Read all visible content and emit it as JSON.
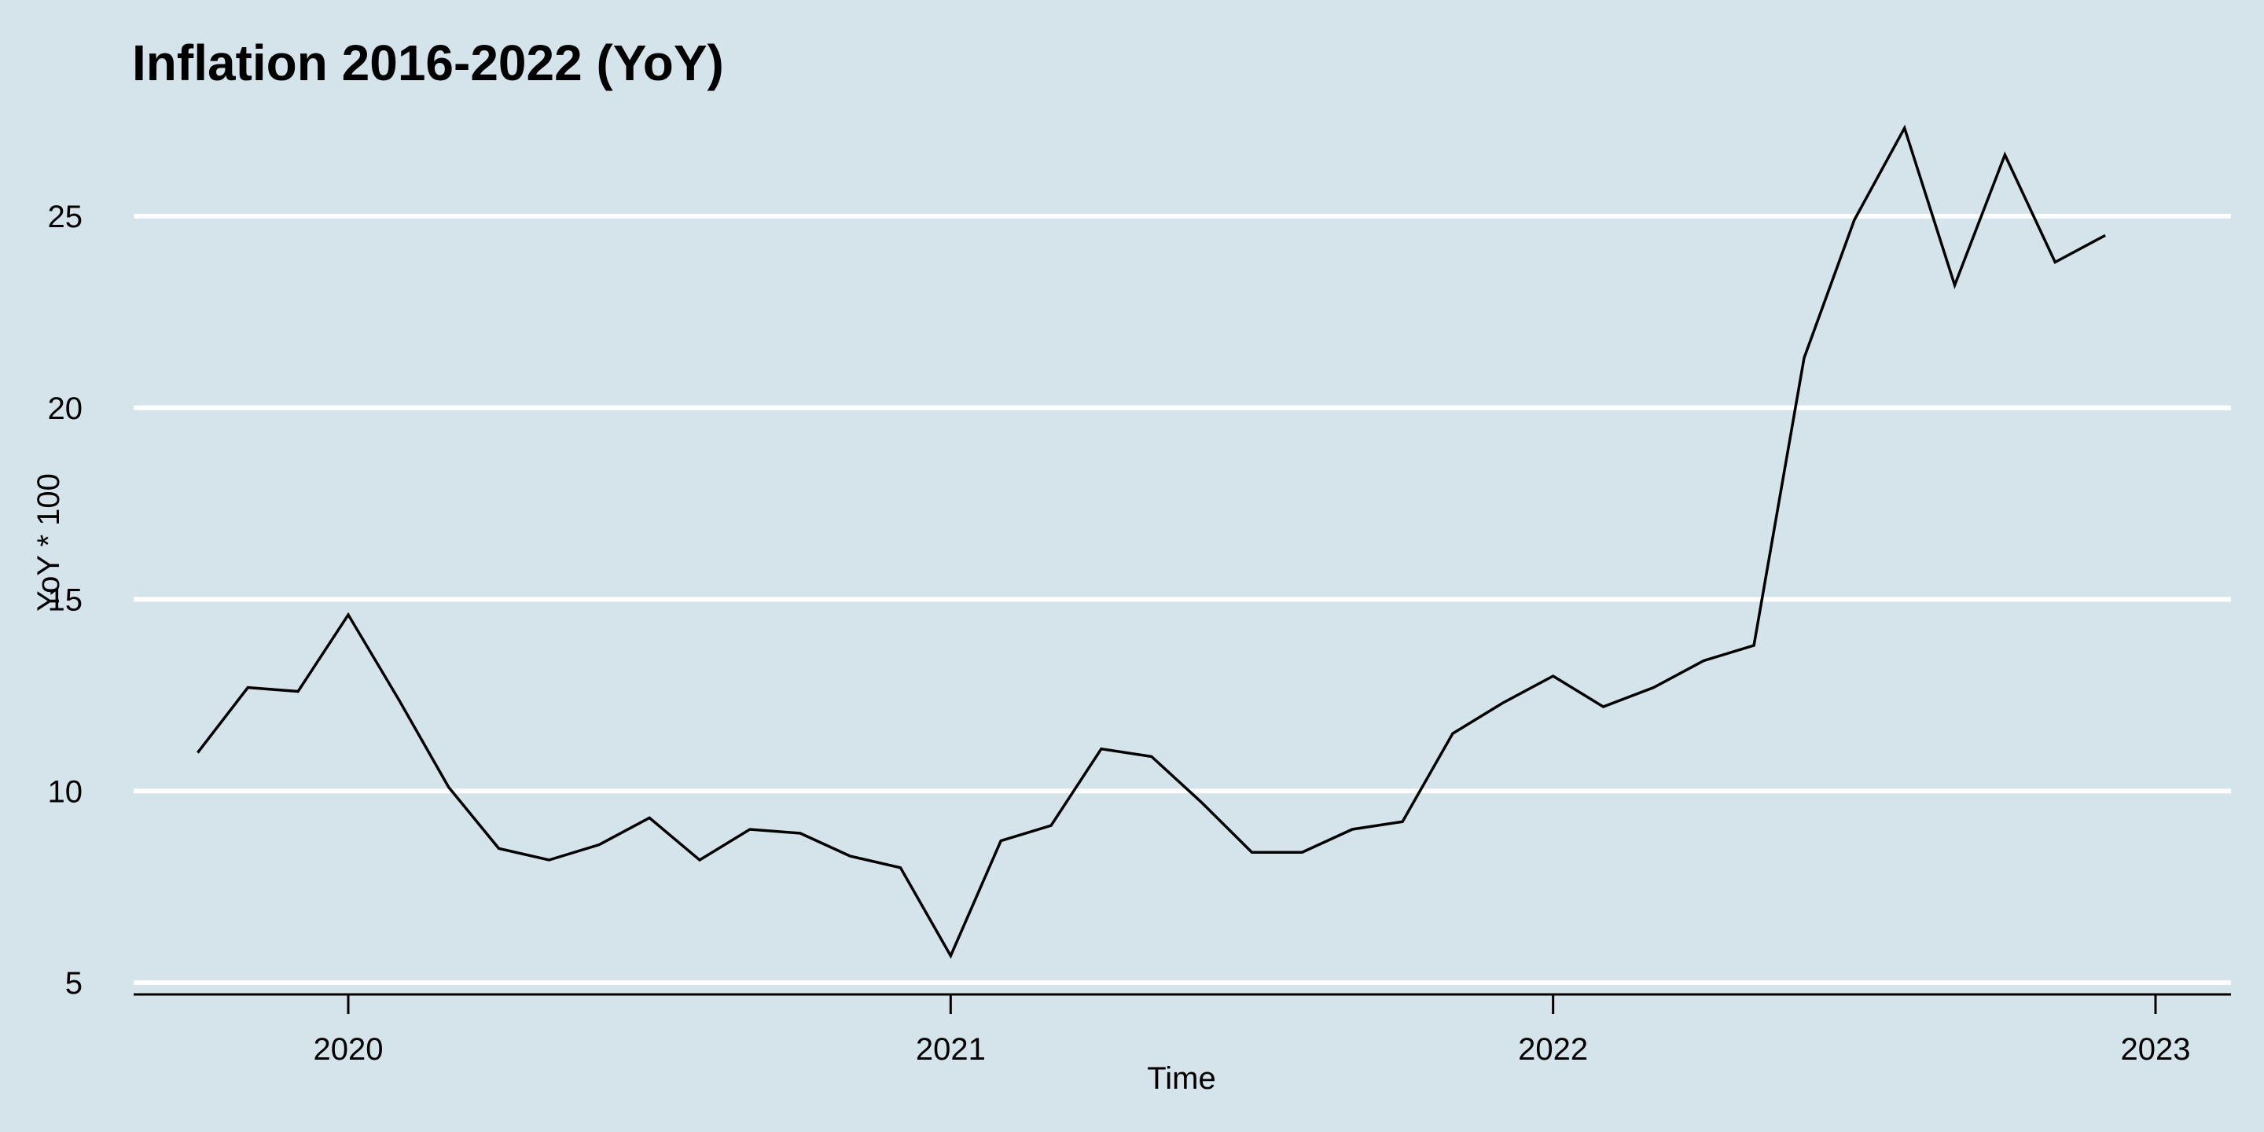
{
  "chart_data": {
    "type": "line",
    "title": "Inflation  2016-2022 (YoY)",
    "xlabel": "Time",
    "ylabel": "YoY * 100",
    "x_ticks": [
      "2020",
      "2021",
      "2022",
      "2023"
    ],
    "y_ticks": [
      "5",
      "10",
      "15",
      "20",
      "25"
    ],
    "ylim": [
      5,
      27.3
    ],
    "xlim": [
      "2019-09",
      "2023-02"
    ],
    "grid": "horizontal",
    "background_color": "#d5e4eb",
    "grid_color": "#ffffff",
    "line_color": "#000000",
    "x": [
      "2019-10",
      "2019-11",
      "2019-12",
      "2020-01",
      "2020-02",
      "2020-03",
      "2020-04",
      "2020-05",
      "2020-06",
      "2020-07",
      "2020-08",
      "2020-09",
      "2020-10",
      "2020-11",
      "2020-12",
      "2021-01",
      "2021-02",
      "2021-03",
      "2021-04",
      "2021-05",
      "2021-06",
      "2021-07",
      "2021-08",
      "2021-09",
      "2021-10",
      "2021-11",
      "2021-12",
      "2022-01",
      "2022-02",
      "2022-03",
      "2022-04",
      "2022-05",
      "2022-06",
      "2022-07",
      "2022-08",
      "2022-09",
      "2022-10",
      "2022-11",
      "2022-12"
    ],
    "series": [
      {
        "values": [
          11.0,
          12.7,
          12.6,
          14.6,
          12.4,
          10.1,
          8.5,
          8.2,
          8.6,
          9.3,
          8.2,
          9.0,
          8.9,
          8.3,
          8.0,
          5.7,
          8.7,
          9.1,
          11.1,
          10.9,
          9.7,
          8.4,
          8.4,
          9.0,
          9.2,
          11.5,
          12.3,
          13.0,
          12.2,
          12.7,
          13.4,
          13.8,
          21.3,
          24.9,
          27.3,
          23.2,
          26.6,
          23.8,
          24.5
        ]
      }
    ]
  }
}
